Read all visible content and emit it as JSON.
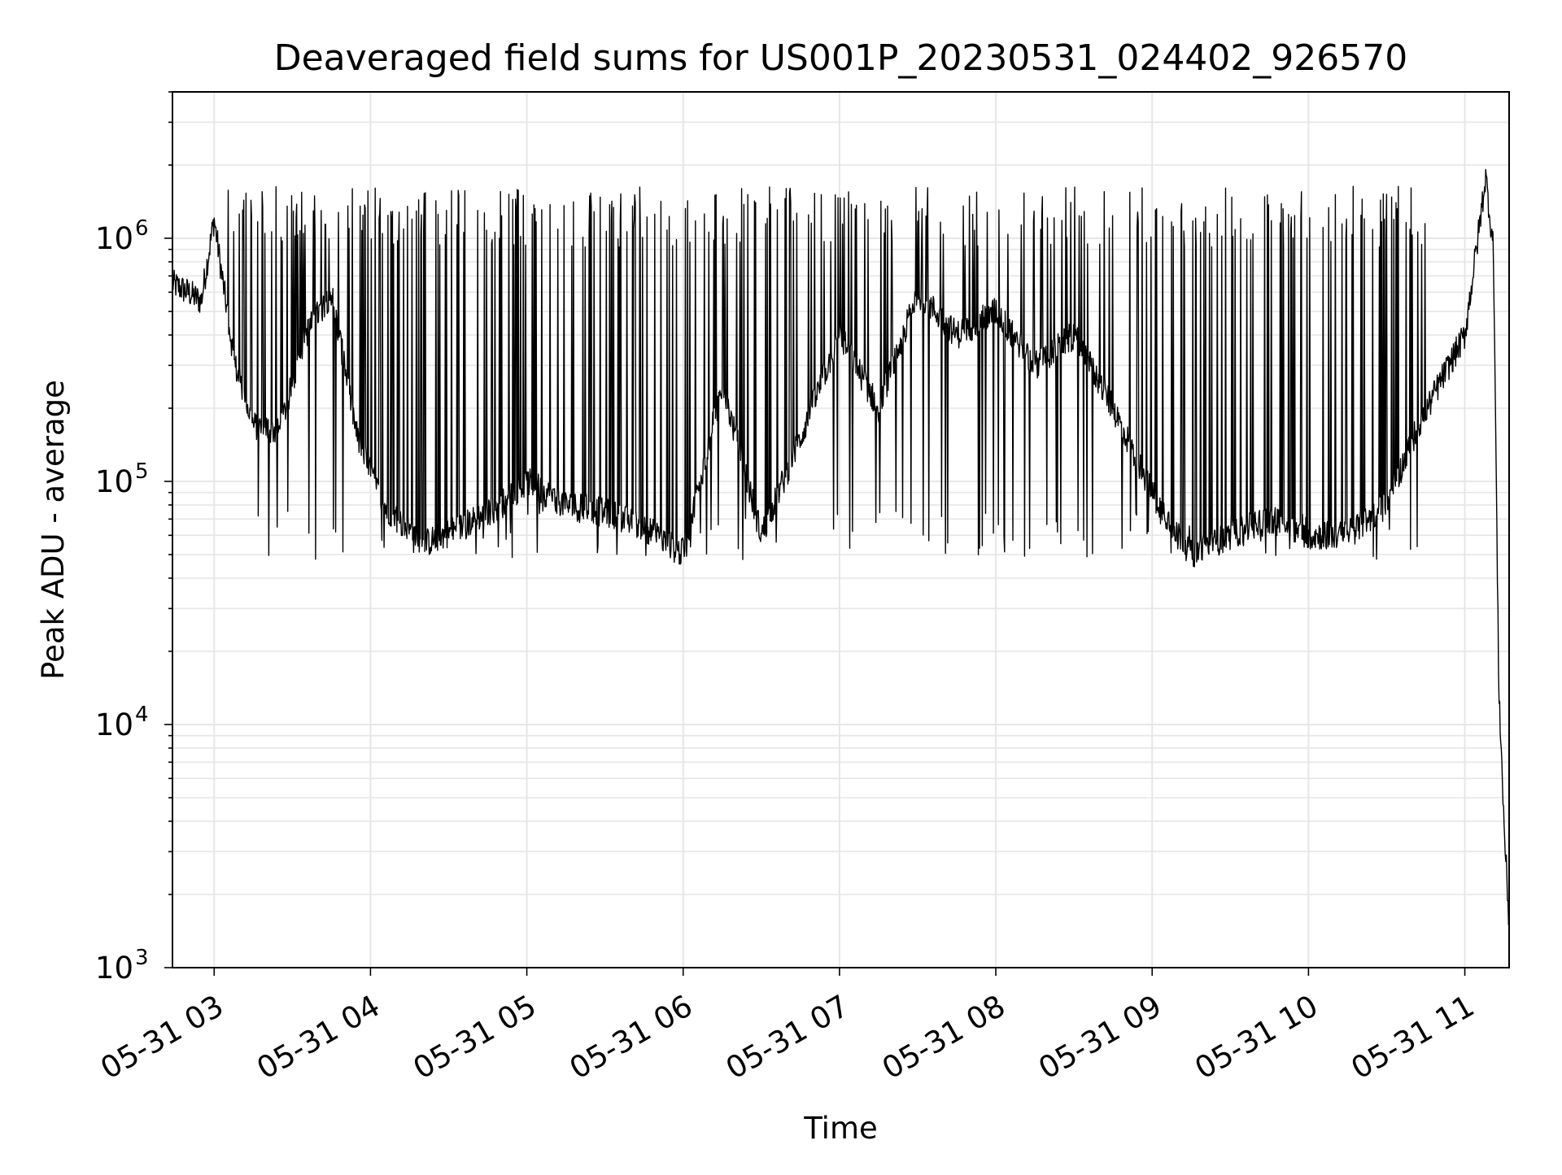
{
  "chart_data": {
    "type": "line",
    "title": "Deaveraged field sums for US001P_20230531_024402_926570",
    "xlabel": "Time",
    "ylabel": "Peak ADU - average",
    "yscale": "log",
    "ylim": [
      1000,
      4000000
    ],
    "xlim": [
      "2023-05-31 02:44",
      "2023-05-31 11:17"
    ],
    "x_ticks": [
      {
        "value": "2023-05-31 03:00",
        "label": "05-31 03"
      },
      {
        "value": "2023-05-31 04:00",
        "label": "05-31 04"
      },
      {
        "value": "2023-05-31 05:00",
        "label": "05-31 05"
      },
      {
        "value": "2023-05-31 06:00",
        "label": "05-31 06"
      },
      {
        "value": "2023-05-31 07:00",
        "label": "05-31 07"
      },
      {
        "value": "2023-05-31 08:00",
        "label": "05-31 08"
      },
      {
        "value": "2023-05-31 09:00",
        "label": "05-31 09"
      },
      {
        "value": "2023-05-31 10:00",
        "label": "05-31 10"
      },
      {
        "value": "2023-05-31 11:00",
        "label": "05-31 11"
      }
    ],
    "y_ticks": [
      {
        "value": 1000,
        "base": "10",
        "exp": "3"
      },
      {
        "value": 10000,
        "base": "10",
        "exp": "4"
      },
      {
        "value": 100000,
        "base": "10",
        "exp": "5"
      },
      {
        "value": 1000000,
        "base": "10",
        "exp": "6"
      }
    ],
    "grid": true,
    "line_color": "#000000",
    "grid_color": "#e6e6e6",
    "series": [
      {
        "x": [
          "2023-05-31 02:44",
          "2023-05-31 02:50",
          "2023-05-31 02:55",
          "2023-05-31 03:00",
          "2023-05-31 03:03",
          "2023-05-31 03:08",
          "2023-05-31 03:15",
          "2023-05-31 03:25",
          "2023-05-31 03:35",
          "2023-05-31 03:45",
          "2023-05-31 03:55",
          "2023-05-31 04:05",
          "2023-05-31 04:20",
          "2023-05-31 04:35",
          "2023-05-31 04:50",
          "2023-05-31 05:00",
          "2023-05-31 05:15",
          "2023-05-31 05:30",
          "2023-05-31 05:45",
          "2023-05-31 06:00",
          "2023-05-31 06:15",
          "2023-05-31 06:30",
          "2023-05-31 06:45",
          "2023-05-31 07:00",
          "2023-05-31 07:15",
          "2023-05-31 07:30",
          "2023-05-31 07:45",
          "2023-05-31 08:00",
          "2023-05-31 08:15",
          "2023-05-31 08:30",
          "2023-05-31 08:45",
          "2023-05-31 09:00",
          "2023-05-31 09:15",
          "2023-05-31 09:30",
          "2023-05-31 09:45",
          "2023-05-31 10:00",
          "2023-05-31 10:15",
          "2023-05-31 10:30",
          "2023-05-31 10:40",
          "2023-05-31 10:50",
          "2023-05-31 11:00",
          "2023-05-31 11:05",
          "2023-05-31 11:08",
          "2023-05-31 11:11",
          "2023-05-31 11:13",
          "2023-05-31 11:15",
          "2023-05-31 11:17"
        ],
        "y": [
          650000,
          600000,
          550000,
          1200000,
          700000,
          300000,
          170000,
          160000,
          400000,
          600000,
          150000,
          80000,
          55000,
          65000,
          80000,
          100000,
          80000,
          75000,
          65000,
          50000,
          250000,
          60000,
          150000,
          400000,
          200000,
          600000,
          400000,
          500000,
          300000,
          400000,
          200000,
          90000,
          50000,
          60000,
          70000,
          60000,
          60000,
          80000,
          150000,
          250000,
          400000,
          1000000,
          1800000,
          900000,
          15000,
          4000,
          1500
        ],
        "spikes_high": 1300000,
        "spikes_low": 60000
      }
    ]
  }
}
